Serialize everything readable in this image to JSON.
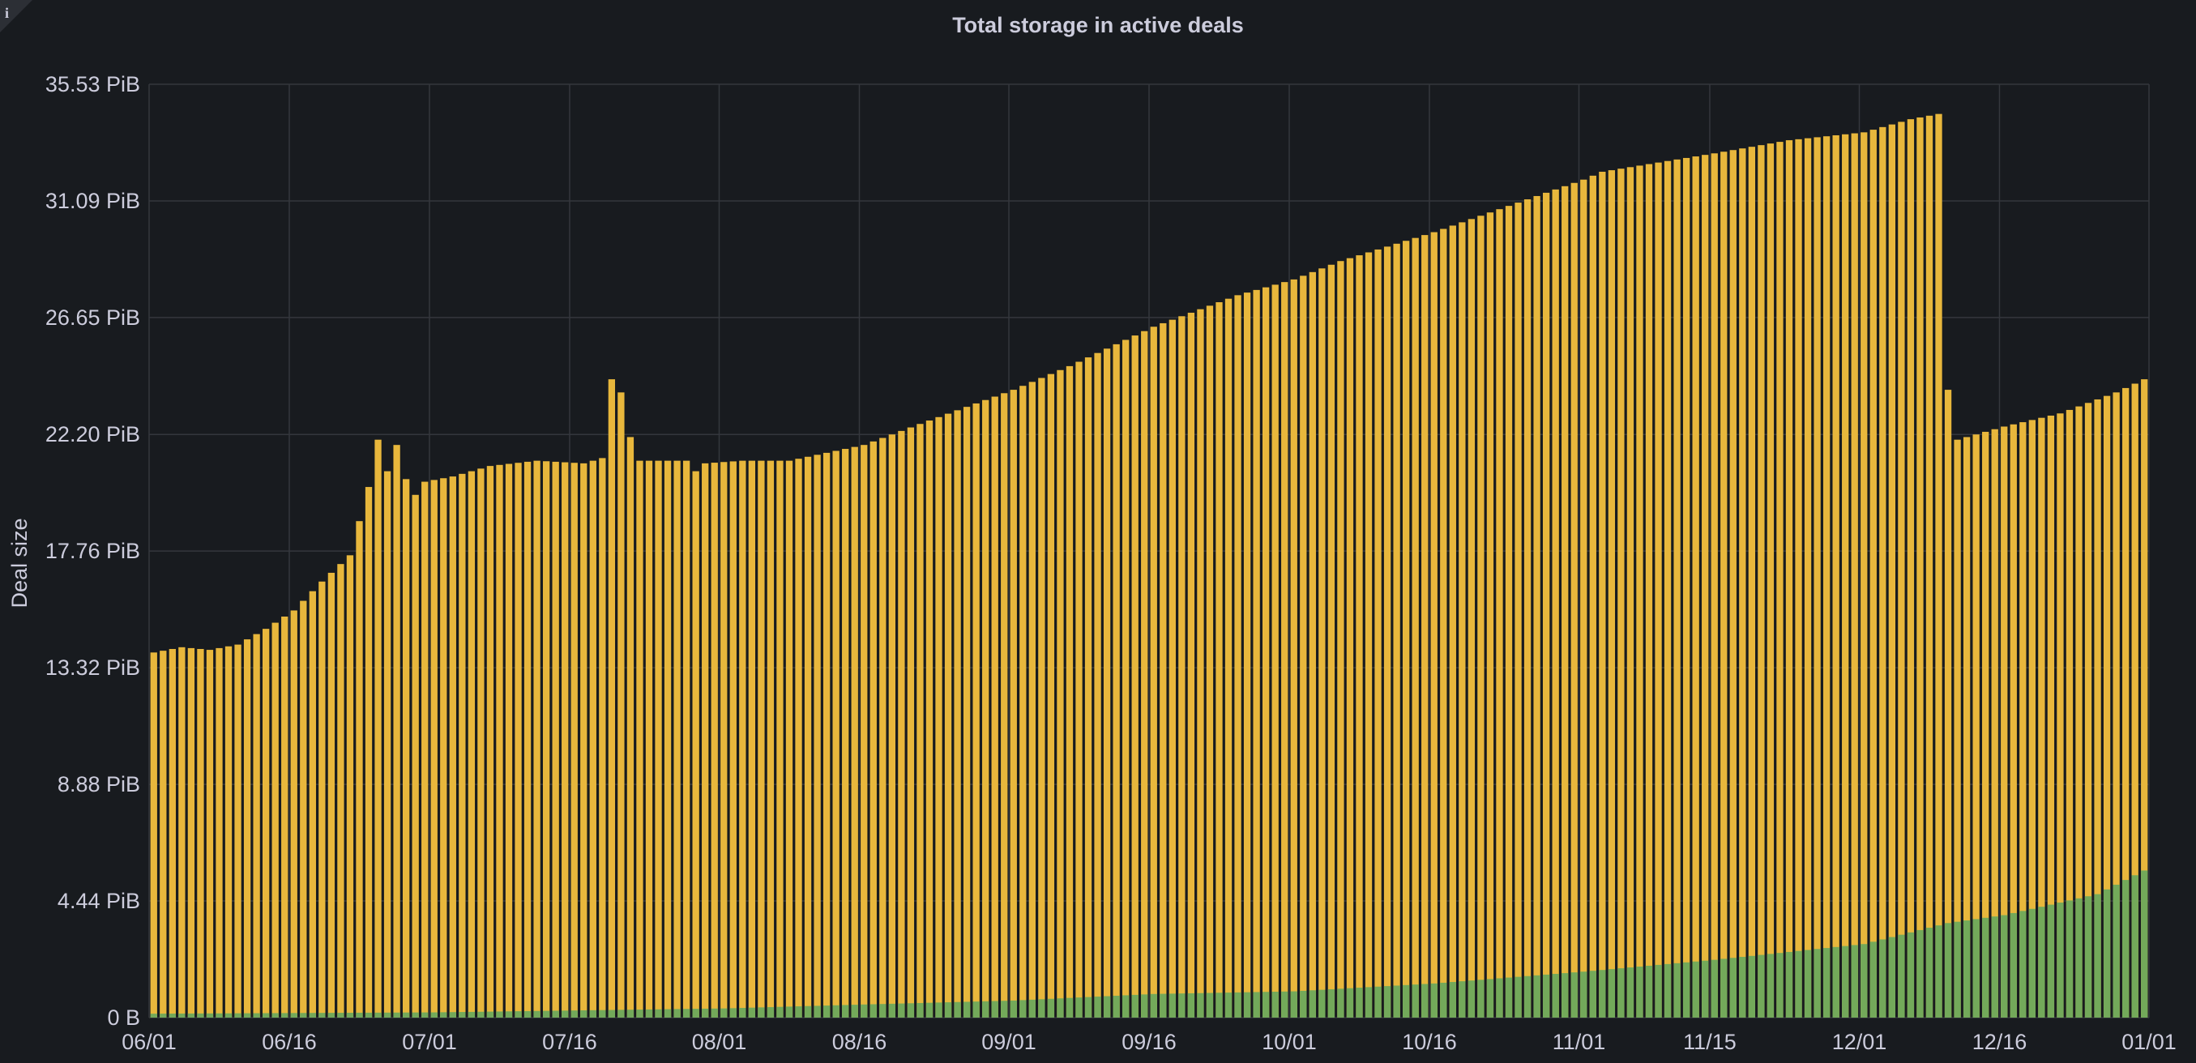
{
  "panel": {
    "title": "Total storage in active deals"
  },
  "chart_data": {
    "type": "bar",
    "stacked": true,
    "title": "Total storage in active deals",
    "ylabel": "Deal size",
    "xlabel": "",
    "unit": "PiB",
    "ylim": [
      0,
      35.53
    ],
    "grid": true,
    "legend": "none",
    "y_ticks": [
      "0 B",
      "4.44 PiB",
      "8.88 PiB",
      "13.32 PiB",
      "17.76 PiB",
      "22.20 PiB",
      "26.65 PiB",
      "31.09 PiB",
      "35.53 PiB"
    ],
    "y_tick_values": [
      0,
      4.44,
      8.88,
      13.32,
      17.76,
      22.2,
      26.65,
      31.09,
      35.53
    ],
    "x_ticks": [
      "06/01",
      "06/16",
      "07/01",
      "07/16",
      "08/01",
      "08/16",
      "09/01",
      "09/16",
      "10/01",
      "10/16",
      "11/01",
      "11/15",
      "12/01",
      "12/16",
      "01/01"
    ],
    "x_tick_dates": [
      "2022-06-01",
      "2022-06-16",
      "2022-07-01",
      "2022-07-16",
      "2022-08-01",
      "2022-08-16",
      "2022-09-01",
      "2022-09-16",
      "2022-10-01",
      "2022-10-16",
      "2022-11-01",
      "2022-11-15",
      "2022-12-01",
      "2022-12-16",
      "2023-01-01"
    ],
    "colors": {
      "total": "#e8b73c",
      "lower": "#73a95a",
      "grid": "#34373d",
      "background": "#181b1f"
    },
    "series": [
      {
        "color": "#e8b73c",
        "points": [
          [
            "2022-06-01",
            13.9
          ],
          [
            "2022-06-04",
            14.1
          ],
          [
            "2022-06-07",
            14.0
          ],
          [
            "2022-06-10",
            14.2
          ],
          [
            "2022-06-13",
            14.8
          ],
          [
            "2022-06-16",
            15.5
          ],
          [
            "2022-06-19",
            16.6
          ],
          [
            "2022-06-22",
            17.6
          ],
          [
            "2022-06-24",
            20.2
          ],
          [
            "2022-06-25",
            22.0
          ],
          [
            "2022-06-26",
            20.8
          ],
          [
            "2022-06-27",
            21.8
          ],
          [
            "2022-06-28",
            20.5
          ],
          [
            "2022-06-29",
            19.9
          ],
          [
            "2022-06-30",
            20.4
          ],
          [
            "2022-07-03",
            20.6
          ],
          [
            "2022-07-07",
            21.0
          ],
          [
            "2022-07-12",
            21.2
          ],
          [
            "2022-07-17",
            21.1
          ],
          [
            "2022-07-19",
            21.3
          ],
          [
            "2022-07-20",
            24.3
          ],
          [
            "2022-07-21",
            23.8
          ],
          [
            "2022-07-22",
            22.1
          ],
          [
            "2022-07-23",
            21.2
          ],
          [
            "2022-07-28",
            21.2
          ],
          [
            "2022-07-29",
            20.8
          ],
          [
            "2022-07-30",
            21.1
          ],
          [
            "2022-08-03",
            21.2
          ],
          [
            "2022-08-08",
            21.2
          ],
          [
            "2022-08-16",
            21.8
          ],
          [
            "2022-08-22",
            22.6
          ],
          [
            "2022-09-01",
            23.9
          ],
          [
            "2022-09-07",
            24.8
          ],
          [
            "2022-09-16",
            26.3
          ],
          [
            "2022-09-25",
            27.5
          ],
          [
            "2022-10-01",
            28.1
          ],
          [
            "2022-10-06",
            28.8
          ],
          [
            "2022-10-16",
            29.9
          ],
          [
            "2022-10-24",
            30.9
          ],
          [
            "2022-11-01",
            31.9
          ],
          [
            "2022-11-03",
            32.2
          ],
          [
            "2022-11-15",
            32.9
          ],
          [
            "2022-11-23",
            33.4
          ],
          [
            "2022-12-01",
            33.7
          ],
          [
            "2022-12-06",
            34.2
          ],
          [
            "2022-12-09",
            34.4
          ],
          [
            "2022-12-10",
            23.9
          ],
          [
            "2022-12-11",
            22.0
          ],
          [
            "2022-12-16",
            22.5
          ],
          [
            "2022-12-22",
            23.0
          ],
          [
            "2022-12-28",
            23.8
          ],
          [
            "2022-12-31",
            24.3
          ]
        ]
      },
      {
        "color": "#73a95a",
        "points": [
          [
            "2022-06-01",
            0.15
          ],
          [
            "2022-07-01",
            0.2
          ],
          [
            "2022-08-01",
            0.35
          ],
          [
            "2022-08-16",
            0.5
          ],
          [
            "2022-09-01",
            0.65
          ],
          [
            "2022-09-16",
            0.9
          ],
          [
            "2022-10-01",
            1.0
          ],
          [
            "2022-10-16",
            1.3
          ],
          [
            "2022-11-01",
            1.75
          ],
          [
            "2022-11-15",
            2.2
          ],
          [
            "2022-12-01",
            2.8
          ],
          [
            "2022-12-10",
            3.6
          ],
          [
            "2022-12-16",
            3.9
          ],
          [
            "2022-12-26",
            4.7
          ],
          [
            "2022-12-31",
            5.6
          ]
        ]
      }
    ]
  }
}
